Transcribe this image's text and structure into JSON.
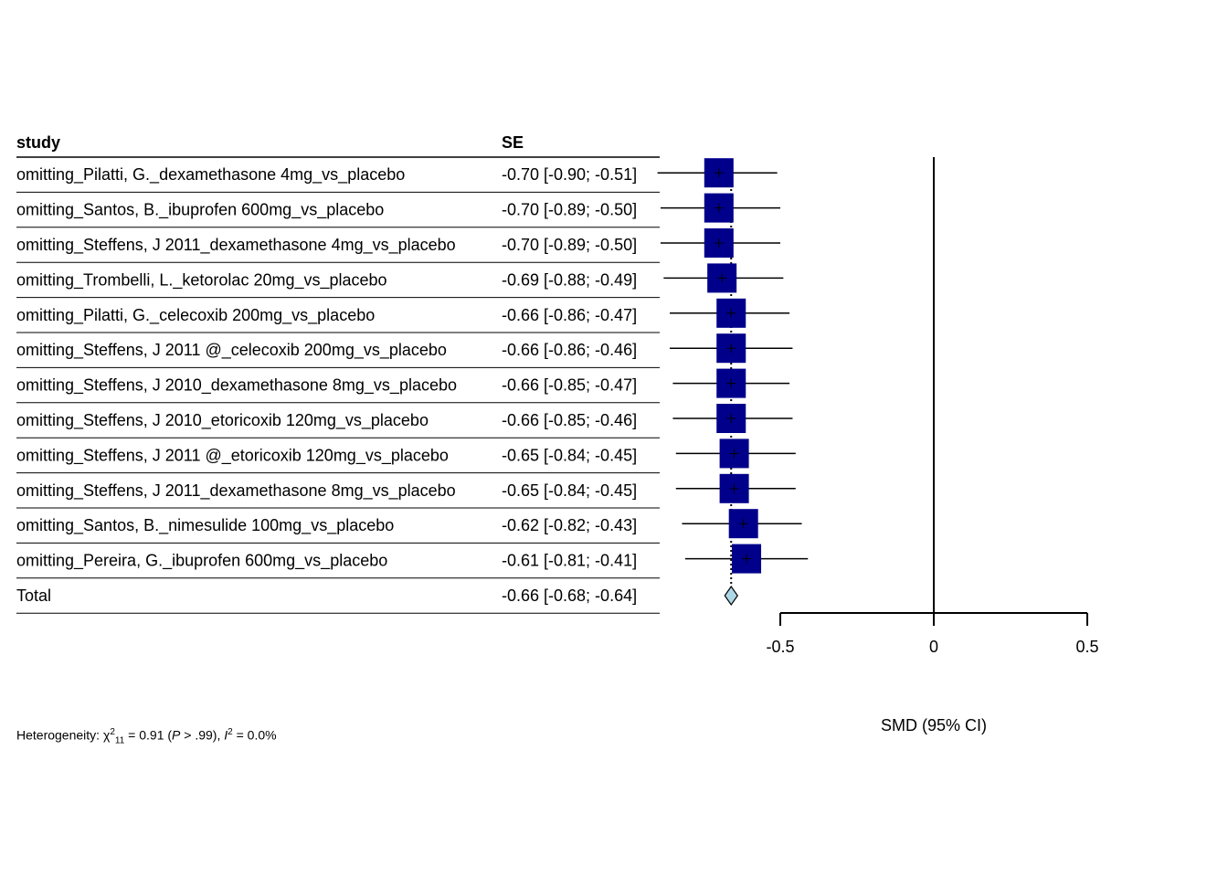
{
  "columns": {
    "study": "study",
    "effect": "SE"
  },
  "heterogeneity": {
    "prefix": "Heterogeneity: ",
    "chi_symbol": "χ",
    "df": "11",
    "chi_value": "0.91",
    "p_label": "P",
    "p_value": " > .99), ",
    "i2_label": "I",
    "i2_value": "0.0%"
  },
  "colors": {
    "box": "#00008B",
    "diamond": "#ADD8E6"
  },
  "chart_data": {
    "type": "forest",
    "xlabel": "SMD (95% CI)",
    "xlim": [
      -0.5,
      0.5
    ],
    "xticks": [
      -0.5,
      0,
      0.5
    ],
    "tick_labels": [
      "-0.5",
      "0",
      "0.5"
    ],
    "rows": [
      {
        "study": "omitting_Pilatti, G._dexamethasone 4mg_vs_placebo",
        "label": "-0.70 [-0.90; -0.51]",
        "est": -0.7,
        "lo": -0.9,
        "hi": -0.51
      },
      {
        "study": "omitting_Santos, B._ibuprofen 600mg_vs_placebo",
        "label": "-0.70 [-0.89; -0.50]",
        "est": -0.7,
        "lo": -0.89,
        "hi": -0.5
      },
      {
        "study": "omitting_Steffens, J 2011_dexamethasone 4mg_vs_placebo",
        "label": "-0.70 [-0.89; -0.50]",
        "est": -0.7,
        "lo": -0.89,
        "hi": -0.5
      },
      {
        "study": "omitting_Trombelli, L._ketorolac 20mg_vs_placebo",
        "label": "-0.69 [-0.88; -0.49]",
        "est": -0.69,
        "lo": -0.88,
        "hi": -0.49
      },
      {
        "study": "omitting_Pilatti, G._celecoxib 200mg_vs_placebo",
        "label": "-0.66 [-0.86; -0.47]",
        "est": -0.66,
        "lo": -0.86,
        "hi": -0.47
      },
      {
        "study": "omitting_Steffens, J 2011 @_celecoxib 200mg_vs_placebo",
        "label": "-0.66 [-0.86; -0.46]",
        "est": -0.66,
        "lo": -0.86,
        "hi": -0.46
      },
      {
        "study": "omitting_Steffens, J 2010_dexamethasone 8mg_vs_placebo",
        "label": "-0.66 [-0.85; -0.47]",
        "est": -0.66,
        "lo": -0.85,
        "hi": -0.47
      },
      {
        "study": "omitting_Steffens, J 2010_etoricoxib 120mg_vs_placebo",
        "label": "-0.66 [-0.85; -0.46]",
        "est": -0.66,
        "lo": -0.85,
        "hi": -0.46
      },
      {
        "study": "omitting_Steffens, J 2011 @_etoricoxib 120mg_vs_placebo",
        "label": "-0.65 [-0.84; -0.45]",
        "est": -0.65,
        "lo": -0.84,
        "hi": -0.45
      },
      {
        "study": "omitting_Steffens, J 2011_dexamethasone 8mg_vs_placebo",
        "label": "-0.65 [-0.84; -0.45]",
        "est": -0.65,
        "lo": -0.84,
        "hi": -0.45
      },
      {
        "study": "omitting_Santos, B._nimesulide 100mg_vs_placebo",
        "label": "-0.62 [-0.82; -0.43]",
        "est": -0.62,
        "lo": -0.82,
        "hi": -0.43
      },
      {
        "study": "omitting_Pereira, G._ibuprofen 600mg_vs_placebo",
        "label": "-0.61 [-0.81; -0.41]",
        "est": -0.61,
        "lo": -0.81,
        "hi": -0.41
      }
    ],
    "total": {
      "study": "Total",
      "label": "-0.66 [-0.68; -0.64]",
      "est": -0.66,
      "lo": -0.68,
      "hi": -0.64
    }
  }
}
